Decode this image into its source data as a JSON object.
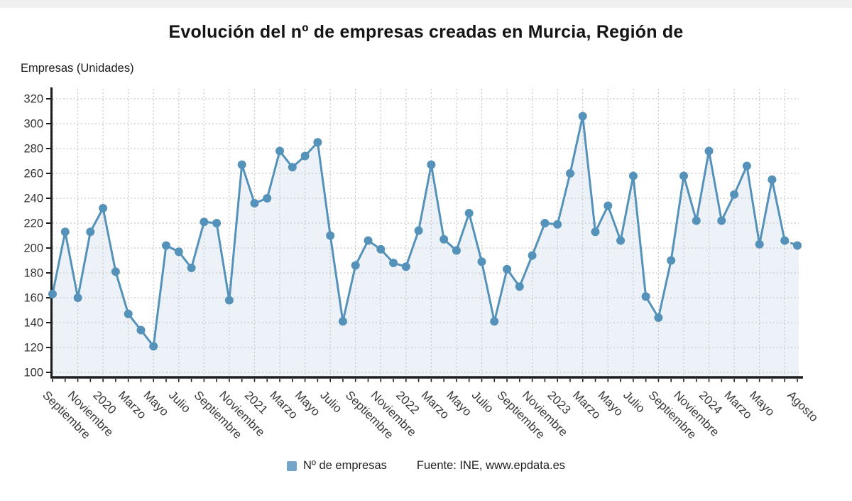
{
  "page": {
    "title": "Evolución del nº de empresas creadas en Murcia, Región de",
    "y_axis_title": "Empresas (Unidades)",
    "legend_label": "Nº de empresas",
    "source": "Fuente: INE, www.epdata.es"
  },
  "colors": {
    "line": "#5592ba",
    "marker": "#5592ba",
    "legend_swatch": "#74a5c9",
    "area_fill": "#edf2f8",
    "grid": "#c8c8c8",
    "axis": "#1d1d1d",
    "y_tick_label": "#333333",
    "x_tick_label": "#3a3a3a"
  },
  "chart_data": {
    "type": "line",
    "title": "Evolución del nº de empresas creadas en Murcia, Región de",
    "ylabel": "Empresas (Unidades)",
    "ylim": [
      100,
      320
    ],
    "ytick_step": 20,
    "grid": true,
    "legend_position": "bottom",
    "series": [
      {
        "name": "Nº de empresas",
        "values": [
          163,
          213,
          160,
          213,
          232,
          181,
          147,
          134,
          121,
          202,
          197,
          184,
          221,
          220,
          158,
          267,
          236,
          240,
          278,
          265,
          274,
          285,
          210,
          141,
          186,
          206,
          199,
          188,
          185,
          214,
          267,
          207,
          198,
          228,
          189,
          141,
          183,
          169,
          194,
          220,
          219,
          260,
          306,
          213,
          234,
          206,
          258,
          161,
          144,
          190,
          258,
          222,
          278,
          222,
          243,
          266,
          203,
          255,
          206,
          202
        ]
      }
    ],
    "x_tick_labels": [
      {
        "i": 0,
        "label": "Septiembre"
      },
      {
        "i": 2,
        "label": "Noviembre"
      },
      {
        "i": 4,
        "label": "2020"
      },
      {
        "i": 6,
        "label": "Marzo"
      },
      {
        "i": 8,
        "label": "Mayo"
      },
      {
        "i": 10,
        "label": "Julio"
      },
      {
        "i": 12,
        "label": "Septiembre"
      },
      {
        "i": 14,
        "label": "Noviembre"
      },
      {
        "i": 16,
        "label": "2021"
      },
      {
        "i": 18,
        "label": "Marzo"
      },
      {
        "i": 20,
        "label": "Mayo"
      },
      {
        "i": 22,
        "label": "Julio"
      },
      {
        "i": 24,
        "label": "Septiembre"
      },
      {
        "i": 26,
        "label": "Noviembre"
      },
      {
        "i": 28,
        "label": "2022"
      },
      {
        "i": 30,
        "label": "Marzo"
      },
      {
        "i": 32,
        "label": "Mayo"
      },
      {
        "i": 34,
        "label": "Julio"
      },
      {
        "i": 36,
        "label": "Septiembre"
      },
      {
        "i": 38,
        "label": "Noviembre"
      },
      {
        "i": 40,
        "label": "2023"
      },
      {
        "i": 42,
        "label": "Marzo"
      },
      {
        "i": 44,
        "label": "Mayo"
      },
      {
        "i": 46,
        "label": "Julio"
      },
      {
        "i": 48,
        "label": "Septiembre"
      },
      {
        "i": 50,
        "label": "Noviembre"
      },
      {
        "i": 52,
        "label": "2024"
      },
      {
        "i": 54,
        "label": "Marzo"
      },
      {
        "i": 56,
        "label": "Mayo"
      },
      {
        "i": 59,
        "label": "Agosto"
      }
    ],
    "last_segment_dashed": true
  }
}
